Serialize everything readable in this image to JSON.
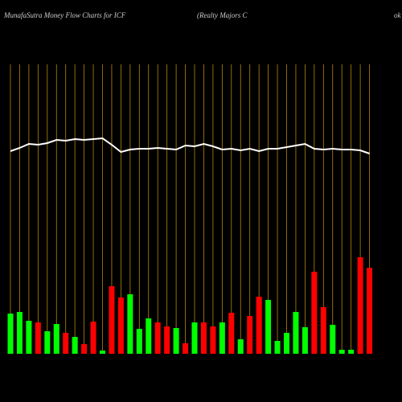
{
  "chart_data": {
    "type": "bar-line",
    "title": "MunafaSutra  Money  Flow  Charts for ICF",
    "subtitle": "(Realty Majors C",
    "title_right": "ok",
    "categories": [
      null,
      null,
      null,
      null,
      null,
      null,
      null,
      null,
      null,
      null,
      null,
      null,
      null,
      null,
      null,
      null,
      null,
      null,
      null,
      null,
      null,
      null,
      null,
      null,
      null,
      null,
      null,
      null,
      null,
      null,
      null,
      null,
      null,
      null,
      null,
      null,
      null,
      null,
      null,
      null
    ],
    "ylim": [
      0,
      440
    ],
    "bars": {
      "values": [
        50,
        52,
        41,
        39,
        28,
        37,
        26,
        21,
        12,
        40,
        4,
        84,
        70,
        74,
        31,
        44,
        39,
        34,
        32,
        13,
        39,
        39,
        34,
        39,
        51,
        18,
        47,
        71,
        67,
        16,
        26,
        52,
        33,
        102,
        58,
        36,
        5,
        5,
        120,
        107
      ],
      "colors": [
        "#00ff00",
        "#00ff00",
        "#00ff00",
        "#ff0000",
        "#00ff00",
        "#00ff00",
        "#ff0000",
        "#00ff00",
        "#ff0000",
        "#ff0000",
        "#00ff00",
        "#ff0000",
        "#ff0000",
        "#00ff00",
        "#00ff00",
        "#00ff00",
        "#ff0000",
        "#ff0000",
        "#00ff00",
        "#ff0000",
        "#00ff00",
        "#ff0000",
        "#ff0000",
        "#00ff00",
        "#ff0000",
        "#00ff00",
        "#ff0000",
        "#ff0000",
        "#00ff00",
        "#00ff00",
        "#00ff00",
        "#00ff00",
        "#00ff00",
        "#ff0000",
        "#ff0000",
        "#00ff00",
        "#00ff00",
        "#00ff00",
        "#ff0000",
        "#ff0000"
      ]
    },
    "line": {
      "color": "#ffffff",
      "values": [
        252,
        256,
        261,
        260,
        262,
        266,
        265,
        267,
        266,
        267,
        268,
        260,
        251,
        254,
        255,
        255,
        256,
        255,
        254,
        259,
        258,
        261,
        258,
        254,
        255,
        253,
        255,
        252,
        255,
        255,
        257,
        259,
        261,
        255,
        254,
        255,
        254,
        254,
        253,
        249
      ]
    }
  }
}
